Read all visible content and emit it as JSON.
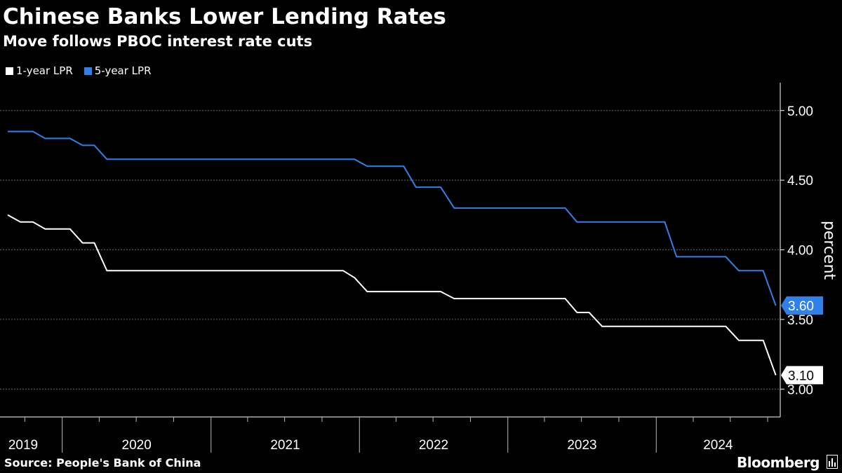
{
  "colors": {
    "background": "#000000",
    "text": "#ffffff",
    "grid": "#666666",
    "series_1y": "#ffffff",
    "series_5y": "#2f80e8"
  },
  "footer": {
    "source": "Source: People's Bank of China",
    "brand": "Bloomberg",
    "brand_icon": "bloomberg-terminal-icon"
  },
  "chart_data": {
    "type": "line",
    "title": "Chinese Banks Lower Lending Rates",
    "subtitle": "Move follows PBOC interest rate cuts",
    "ylabel": "percent",
    "xlabel": "",
    "ylim": [
      2.8,
      5.2
    ],
    "xlim": [
      "2019-08-01",
      "2024-11-01"
    ],
    "yticks": [
      "3.00",
      "3.50",
      "4.00",
      "4.50",
      "5.00"
    ],
    "xticks": [
      "2019",
      "2020",
      "2021",
      "2022",
      "2023",
      "2024"
    ],
    "grid": true,
    "legend": "top-left",
    "series": [
      {
        "name": "1-year LPR",
        "color": "#ffffff",
        "last_label": "3.10",
        "points": [
          [
            "2019-08-20",
            4.25
          ],
          [
            "2019-09-20",
            4.2
          ],
          [
            "2019-10-21",
            4.2
          ],
          [
            "2019-11-20",
            4.15
          ],
          [
            "2019-12-20",
            4.15
          ],
          [
            "2020-01-20",
            4.15
          ],
          [
            "2020-02-20",
            4.05
          ],
          [
            "2020-03-20",
            4.05
          ],
          [
            "2020-04-20",
            3.85
          ],
          [
            "2021-11-22",
            3.85
          ],
          [
            "2021-12-20",
            3.8
          ],
          [
            "2022-01-20",
            3.7
          ],
          [
            "2022-07-20",
            3.7
          ],
          [
            "2022-08-22",
            3.65
          ],
          [
            "2023-05-22",
            3.65
          ],
          [
            "2023-06-20",
            3.55
          ],
          [
            "2023-07-20",
            3.55
          ],
          [
            "2023-08-21",
            3.45
          ],
          [
            "2024-06-20",
            3.45
          ],
          [
            "2024-07-22",
            3.35
          ],
          [
            "2024-09-20",
            3.35
          ],
          [
            "2024-10-21",
            3.1
          ]
        ]
      },
      {
        "name": "5-year LPR",
        "color": "#2f80e8",
        "last_label": "3.60",
        "points": [
          [
            "2019-08-20",
            4.85
          ],
          [
            "2019-10-21",
            4.85
          ],
          [
            "2019-11-20",
            4.8
          ],
          [
            "2020-01-20",
            4.8
          ],
          [
            "2020-02-20",
            4.75
          ],
          [
            "2020-03-20",
            4.75
          ],
          [
            "2020-04-20",
            4.65
          ],
          [
            "2021-12-20",
            4.65
          ],
          [
            "2022-01-20",
            4.6
          ],
          [
            "2022-04-20",
            4.6
          ],
          [
            "2022-05-20",
            4.45
          ],
          [
            "2022-07-20",
            4.45
          ],
          [
            "2022-08-22",
            4.3
          ],
          [
            "2023-05-22",
            4.3
          ],
          [
            "2023-06-20",
            4.2
          ],
          [
            "2024-01-22",
            4.2
          ],
          [
            "2024-02-20",
            3.95
          ],
          [
            "2024-06-20",
            3.95
          ],
          [
            "2024-07-22",
            3.85
          ],
          [
            "2024-09-20",
            3.85
          ],
          [
            "2024-10-21",
            3.6
          ]
        ]
      }
    ]
  }
}
